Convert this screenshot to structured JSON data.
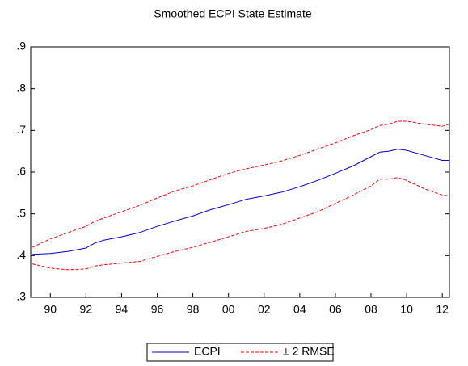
{
  "chart_data": {
    "type": "line",
    "title": "Smoothed ECPI State Estimate",
    "x": [
      1989,
      1990,
      1991,
      1992,
      1992.5,
      1993,
      1994,
      1995,
      1996,
      1997,
      1998,
      1999,
      2000,
      2001,
      2002,
      2003,
      2004,
      2005,
      2006,
      2007,
      2008,
      2008.5,
      2009,
      2009.5,
      2010,
      2011,
      2012,
      2012.4
    ],
    "series": [
      {
        "name": "ECPI",
        "color": "#0000cc",
        "dash": false,
        "values": [
          0.403,
          0.405,
          0.41,
          0.418,
          0.43,
          0.437,
          0.445,
          0.455,
          0.47,
          0.483,
          0.495,
          0.51,
          0.522,
          0.535,
          0.543,
          0.552,
          0.565,
          0.58,
          0.597,
          0.615,
          0.637,
          0.648,
          0.65,
          0.655,
          0.652,
          0.64,
          0.628,
          0.628
        ]
      },
      {
        "name": "± 2 RMSE",
        "color": "#ff0000",
        "dash": true,
        "values": [
          0.42,
          0.44,
          0.455,
          0.47,
          0.482,
          0.49,
          0.505,
          0.52,
          0.538,
          0.555,
          0.567,
          0.582,
          0.597,
          0.608,
          0.617,
          0.627,
          0.64,
          0.655,
          0.67,
          0.687,
          0.702,
          0.712,
          0.715,
          0.722,
          0.722,
          0.715,
          0.71,
          0.715
        ]
      },
      {
        "color": "#ff0000",
        "dash": true,
        "values": [
          0.38,
          0.37,
          0.366,
          0.368,
          0.375,
          0.378,
          0.382,
          0.386,
          0.398,
          0.41,
          0.42,
          0.432,
          0.445,
          0.458,
          0.465,
          0.475,
          0.49,
          0.505,
          0.525,
          0.545,
          0.567,
          0.583,
          0.583,
          0.587,
          0.58,
          0.56,
          0.545,
          0.543
        ]
      }
    ],
    "xlim": [
      1988.9,
      2012.4
    ],
    "xticks": [
      {
        "value": 1990,
        "label": "90"
      },
      {
        "value": 1992,
        "label": "92"
      },
      {
        "value": 1994,
        "label": "94"
      },
      {
        "value": 1996,
        "label": "96"
      },
      {
        "value": 1998,
        "label": "98"
      },
      {
        "value": 2000,
        "label": "00"
      },
      {
        "value": 2002,
        "label": "02"
      },
      {
        "value": 2004,
        "label": "04"
      },
      {
        "value": 2006,
        "label": "06"
      },
      {
        "value": 2008,
        "label": "08"
      },
      {
        "value": 2010,
        "label": "10"
      },
      {
        "value": 2012,
        "label": "12"
      }
    ],
    "ylim": [
      0.3,
      0.9
    ],
    "yticks": [
      {
        "value": 0.3,
        "label": ".3"
      },
      {
        "value": 0.4,
        "label": ".4"
      },
      {
        "value": 0.5,
        "label": ".5"
      },
      {
        "value": 0.6,
        "label": ".6"
      },
      {
        "value": 0.7,
        "label": ".7"
      },
      {
        "value": 0.8,
        "label": ".8"
      },
      {
        "value": 0.9,
        "label": ".9"
      }
    ],
    "legend": "bottom"
  }
}
